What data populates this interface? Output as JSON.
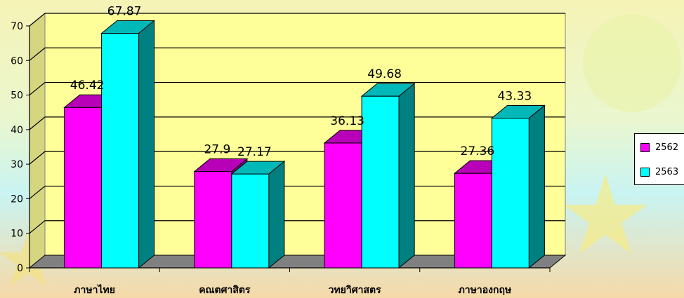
{
  "chart_data": {
    "type": "bar",
    "categories": [
      "ภาษาไทย",
      "คณตศาสิตร",
      "วทยาิศาสตร",
      "ภาษาองกฤษ"
    ],
    "series": [
      {
        "name": "2562",
        "values": [
          46.42,
          27.9,
          36.13,
          27.36
        ],
        "color": "#ff00ff"
      },
      {
        "name": "2563",
        "values": [
          67.87,
          27.17,
          49.68,
          43.33
        ],
        "color": "#00ffff"
      }
    ],
    "ylim": [
      0,
      70
    ],
    "yticks": [
      0,
      10,
      20,
      30,
      40,
      50,
      60,
      70
    ],
    "grid": true,
    "style": "3d-clustered-column",
    "plot_color": "#ffff99",
    "legend_position": "right"
  }
}
